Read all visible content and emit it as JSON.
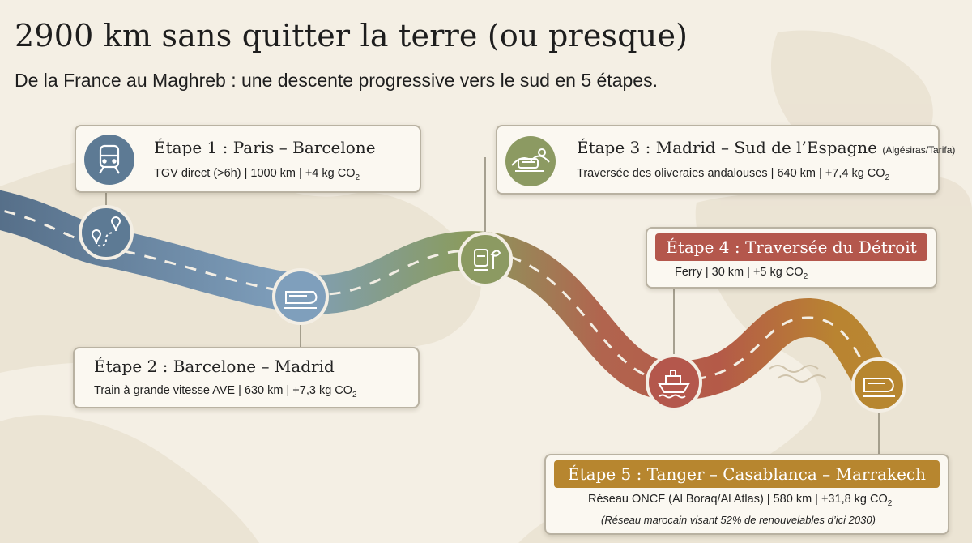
{
  "header": {
    "title": "2900 km sans quitter la terre (ou presque)",
    "subtitle": "De la France au Maghreb : une descente progressive vers le sud en 5 étapes."
  },
  "colors": {
    "stage1": "#5d7a94",
    "stage2": "#6f90ad",
    "stage3": "#8c9a62",
    "stage4": "#b4574c",
    "stage5": "#b7862f",
    "card_border": "#b9b2a2"
  },
  "stages": [
    {
      "id": "1",
      "title": "Étape 1 : Paris – Barcelone",
      "title_extra": "",
      "desc": "TGV direct (>6h) | 1000 km | +4 kg CO",
      "co2_sub": "2",
      "node_icon": "route-pin-icon",
      "card_icon": "train-icon"
    },
    {
      "id": "2",
      "title": "Étape 2 : Barcelone – Madrid",
      "title_extra": "",
      "desc": "Train à grande vitesse AVE | 630 km | +7,3 kg CO",
      "co2_sub": "2",
      "node_icon": "high-speed-train-icon"
    },
    {
      "id": "3",
      "title": "Étape 3 : Madrid – Sud de l’Espagne",
      "title_extra": "(Algésiras/Tarifa)",
      "desc": "Traversée des oliveraies andalouses | 640 km | +7,4 kg CO",
      "co2_sub": "2",
      "node_icon": "train-olive-icon",
      "card_icon": "landscape-train-icon"
    },
    {
      "id": "4",
      "title": "Étape 4 : Traversée du Détroit",
      "title_extra": "",
      "desc": "Ferry | 30 km | +5 kg CO",
      "co2_sub": "2",
      "node_icon": "ferry-icon"
    },
    {
      "id": "5",
      "title": "Étape 5 : Tanger – Casablanca – Marrakech",
      "title_extra": "",
      "desc": "Réseau ONCF (Al Boraq/Al Atlas) | 580 km | +31,8 kg CO",
      "co2_sub": "2",
      "note": "(Réseau marocain visant 52% de renouvelables d’ici 2030)",
      "node_icon": "train-icon"
    }
  ]
}
